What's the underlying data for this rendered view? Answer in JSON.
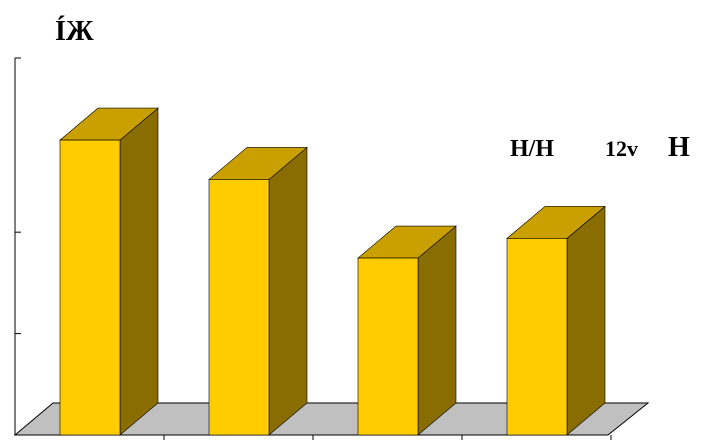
{
  "chart_data": {
    "type": "bar",
    "three_d": true,
    "title": "",
    "corner_label": "ÍЖ",
    "annotation": {
      "left": "H/H",
      "middle": "12v",
      "right": "H"
    },
    "categories": [
      "",
      "",
      "",
      ""
    ],
    "series": [
      {
        "values": [
          3.0,
          2.6,
          1.8,
          2.0
        ]
      }
    ],
    "ylim": [
      0,
      3.5
    ],
    "y_ticks_visible": [
      1,
      2
    ],
    "grid": false,
    "legend": "none"
  },
  "colors": {
    "bar_front": "#ffcc00",
    "bar_top": "#c9a000",
    "bar_side": "#8a6d00",
    "floor": "#c0c0c0",
    "axis": "#000000"
  }
}
